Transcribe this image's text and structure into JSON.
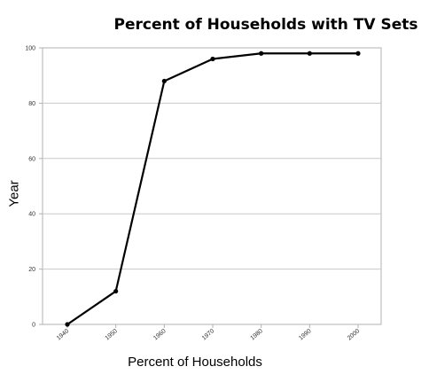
{
  "chart_data": {
    "type": "line",
    "title": "Percent of Households with TV Sets",
    "xlabel": "Percent of Households",
    "ylabel": "Year",
    "x": [
      1940,
      1950,
      1960,
      1970,
      1980,
      1990,
      2000
    ],
    "y": [
      0,
      12,
      88,
      96,
      98,
      98,
      98
    ],
    "xticks": [
      "1940",
      "1950",
      "1960",
      "1970",
      "1980",
      "1990",
      "2000"
    ],
    "yticks": [
      "0",
      "20",
      "40",
      "60",
      "80",
      "100"
    ],
    "xlim": [
      1940,
      2000
    ],
    "ylim": [
      0,
      100
    ],
    "grid": "horizontal",
    "legend": "none",
    "colors": {
      "line": "#000000",
      "grid": "#c8c8c8",
      "frame": "#b0b0b0"
    }
  }
}
